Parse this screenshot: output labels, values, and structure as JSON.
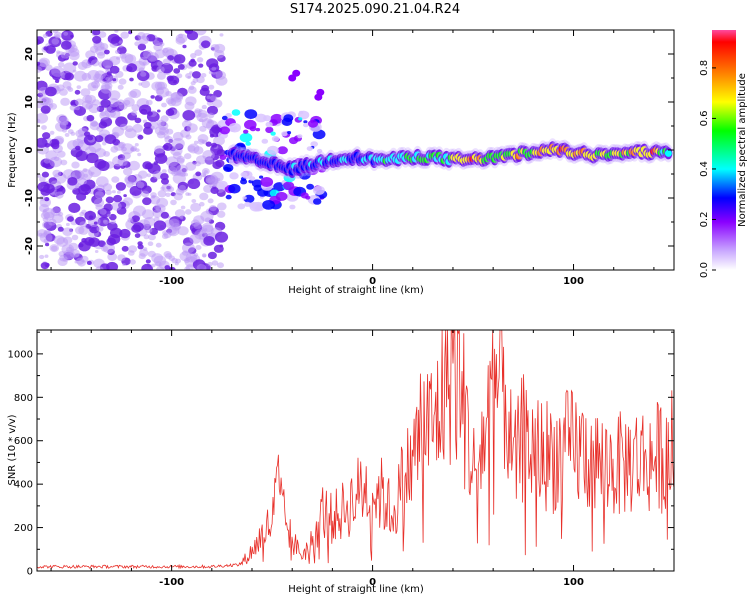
{
  "title": "S174.2025.090.21.04.R24",
  "colors": {
    "snr_line": "#e8302a",
    "axis": "#000000",
    "scatter_purple": "#7b3fe4",
    "colormap": [
      "#ffffff",
      "#8a00ff",
      "#0000ff",
      "#00ffff",
      "#00ff00",
      "#ffff00",
      "#ff8000",
      "#ff0000"
    ]
  },
  "chart_data": [
    {
      "type": "heatmap",
      "name": "spectrogram",
      "xlabel": "Height of straight line (km)",
      "ylabel": "Frequency (Hz)",
      "xlim": [
        -167,
        150
      ],
      "ylim": [
        -25,
        25
      ],
      "xticks": [
        -100,
        0,
        100
      ],
      "yticks": [
        -20,
        -10,
        0,
        10,
        20
      ],
      "colorbar": {
        "label": "Normalized spectral amplitude",
        "range": [
          0,
          0.95
        ],
        "ticks": [
          0.0,
          0.2,
          0.4,
          0.6,
          0.8
        ]
      },
      "noise_region_x": [
        -167,
        -75
      ],
      "ridge": {
        "x": [
          -70,
          -60,
          -50,
          -40,
          -30,
          -20,
          -10,
          0,
          10,
          20,
          30,
          40,
          50,
          60,
          70,
          80,
          90,
          100,
          110,
          120,
          130,
          140,
          148
        ],
        "frequency": [
          -1,
          -2,
          -3,
          -4,
          -3,
          -2,
          -1.5,
          -2,
          -2,
          -1.5,
          -1.5,
          -2,
          -2,
          -1.5,
          -1,
          -0.5,
          0,
          -0.5,
          -1,
          -0.5,
          -0.5,
          -0.5,
          -0.5
        ],
        "amplitude": [
          0.3,
          0.3,
          0.3,
          0.35,
          0.35,
          0.4,
          0.4,
          0.45,
          0.5,
          0.55,
          0.55,
          0.7,
          0.85,
          0.6,
          0.7,
          0.75,
          0.85,
          0.9,
          0.8,
          0.75,
          0.8,
          0.85,
          0.5
        ]
      },
      "grid": false
    },
    {
      "type": "line",
      "name": "snr",
      "xlabel": "Height of straight line (km)",
      "ylabel": "SNR (10 * v/v)",
      "xlim": [
        -167,
        150
      ],
      "ylim": [
        0,
        1110
      ],
      "xticks": [
        -100,
        0,
        100
      ],
      "yticks": [
        0,
        200,
        400,
        600,
        800,
        1000
      ],
      "series": [
        {
          "x": [
            -167,
            -140,
            -110,
            -80,
            -66,
            -60,
            -55,
            -50,
            -47,
            -45,
            -40,
            -35,
            -30,
            -25,
            -20,
            -15,
            -10,
            -5,
            0,
            5,
            10,
            15,
            20,
            25,
            30,
            35,
            40,
            45,
            50,
            55,
            60,
            65,
            70,
            75,
            80,
            90,
            100,
            110,
            120,
            130,
            140,
            150
          ],
          "values": [
            20,
            20,
            20,
            20,
            30,
            100,
            180,
            250,
            440,
            300,
            150,
            80,
            150,
            300,
            260,
            300,
            350,
            420,
            400,
            380,
            280,
            450,
            550,
            760,
            700,
            900,
            1100,
            850,
            500,
            650,
            900,
            1010,
            500,
            680,
            600,
            580,
            620,
            560,
            520,
            560,
            560,
            620
          ]
        }
      ],
      "grid": false
    }
  ]
}
